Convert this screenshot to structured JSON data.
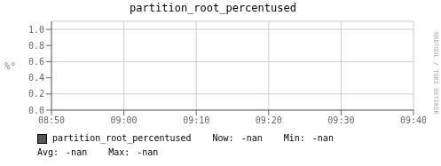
{
  "chart_data": {
    "type": "line",
    "title": "partition_root_percentused",
    "y_label": "%°",
    "categories": [
      "08:50",
      "09:00",
      "09:10",
      "09:20",
      "09:30",
      "09:40"
    ],
    "series": [
      {
        "name": "partition_root_percentused",
        "color": "#555555",
        "values": [
          null,
          null,
          null,
          null,
          null,
          null
        ]
      }
    ],
    "ylim": [
      0.0,
      1.1
    ],
    "yticks": [
      {
        "value": 0.0,
        "label": "0.0"
      },
      {
        "value": 0.2,
        "label": "0.2"
      },
      {
        "value": 0.4,
        "label": "0.4"
      },
      {
        "value": 0.6,
        "label": "0.6"
      },
      {
        "value": 0.8,
        "label": "0.8"
      },
      {
        "value": 1.0,
        "label": "1.0"
      }
    ],
    "grid": true,
    "legend": "bottom",
    "annotations": [
      "Now:",
      "-nan",
      "Min:",
      "-nan",
      "Avg:",
      "-nan",
      "Max:",
      "-nan",
      "RRDTOOL / TOBI OETIKER"
    ]
  }
}
